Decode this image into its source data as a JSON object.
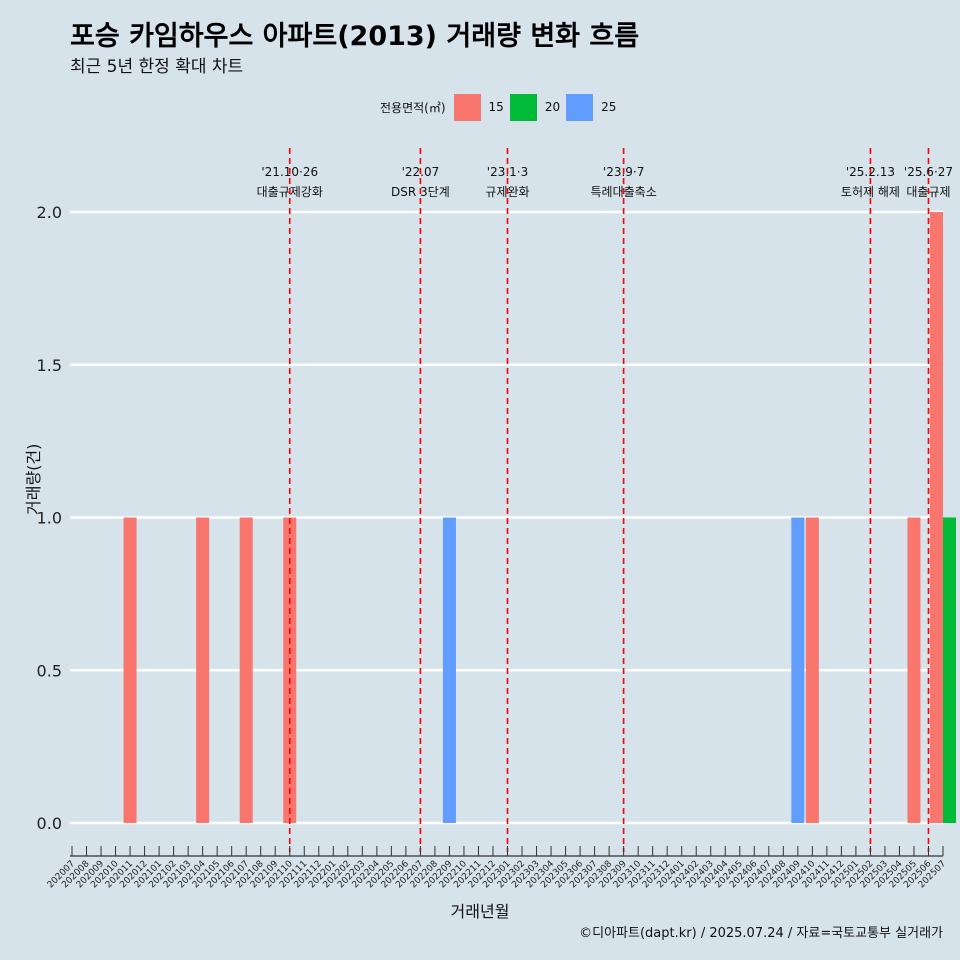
{
  "title": "포승 카임하우스 아파트(2013) 거래량 변화 흐름",
  "subtitle": "최근 5년 한정 확대 차트",
  "legend": {
    "title": "전용면적(㎡)",
    "items": [
      {
        "label": "15",
        "color": "#f8766d"
      },
      {
        "label": "20",
        "color": "#00ba38"
      },
      {
        "label": "25",
        "color": "#619cff"
      }
    ]
  },
  "caption": "©디아파트(dapt.kr) / 2025.07.24 / 자료=국토교통부 실거래가",
  "chart_data": {
    "type": "bar",
    "xlabel": "거래년월",
    "ylabel": "거래량(건)",
    "ylim": [
      0,
      2
    ],
    "yticks": [
      "0.0",
      "0.5",
      "1.0",
      "1.5",
      "2.0"
    ],
    "categories": [
      "202007",
      "202008",
      "202009",
      "202010",
      "202011",
      "202012",
      "202101",
      "202102",
      "202103",
      "202104",
      "202105",
      "202106",
      "202107",
      "202108",
      "202109",
      "202110",
      "202111",
      "202112",
      "202201",
      "202202",
      "202203",
      "202204",
      "202205",
      "202206",
      "202207",
      "202208",
      "202209",
      "202210",
      "202211",
      "202212",
      "202301",
      "202302",
      "202303",
      "202304",
      "202305",
      "202306",
      "202307",
      "202308",
      "202309",
      "202310",
      "202311",
      "202312",
      "202401",
      "202402",
      "202403",
      "202404",
      "202405",
      "202406",
      "202407",
      "202408",
      "202409",
      "202410",
      "202411",
      "202412",
      "202501",
      "202502",
      "202503",
      "202504",
      "202505",
      "202506",
      "202507"
    ],
    "series": [
      {
        "name": "15",
        "color": "#f8766d",
        "points": [
          {
            "month": "202011",
            "value": 1
          },
          {
            "month": "202104",
            "value": 1
          },
          {
            "month": "202107",
            "value": 1
          },
          {
            "month": "202110",
            "value": 1
          },
          {
            "month": "202410",
            "value": 1
          },
          {
            "month": "202505",
            "value": 1
          },
          {
            "month": "202507",
            "value": 2
          }
        ]
      },
      {
        "name": "20",
        "color": "#00ba38",
        "points": [
          {
            "month": "202507",
            "value": 1
          }
        ]
      },
      {
        "name": "25",
        "color": "#619cff",
        "points": [
          {
            "month": "202209",
            "value": 1
          },
          {
            "month": "202409",
            "value": 1
          }
        ]
      }
    ],
    "events": [
      {
        "date": "'21.10·26",
        "label": "대출규제강화",
        "month": "202110"
      },
      {
        "date": "'22.07",
        "label": "DSR 3단계",
        "month": "202207"
      },
      {
        "date": "'23.1·3",
        "label": "규제완화",
        "month": "202301"
      },
      {
        "date": "'23.9·7",
        "label": "특례대출축소",
        "month": "202309"
      },
      {
        "date": "'25.2.13",
        "label": "토허제 해제",
        "month": "202502"
      },
      {
        "date": "'25.6·27",
        "label": "대출규제",
        "month": "202506"
      }
    ],
    "event_line_color": "#ff0000",
    "grid": true,
    "legend_position": "top"
  }
}
